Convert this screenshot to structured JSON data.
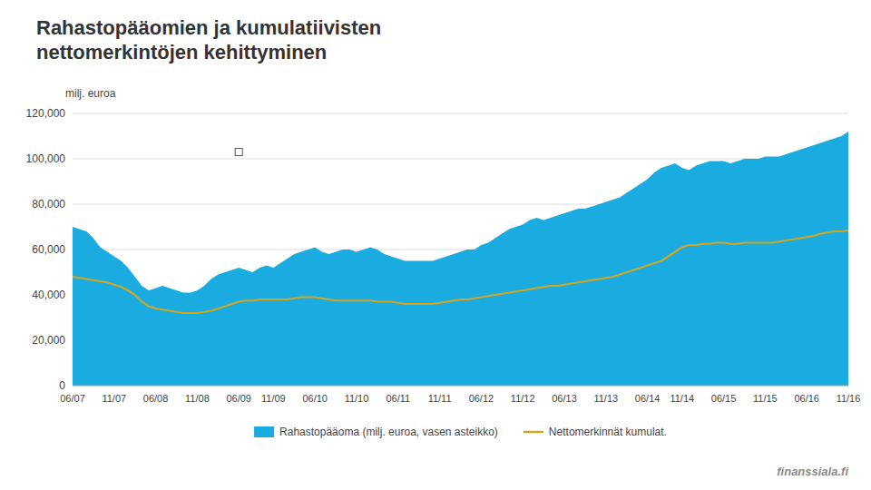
{
  "chart_data": {
    "type": "area",
    "title": "Rahastopääomien ja kumulatiivisten\nnettomerkintöjen kehittyminen",
    "y_label": "milj. euroa",
    "annotations": [
      "finanssiala.fi"
    ],
    "grid": true,
    "legend": "bottom",
    "ylim": [
      0,
      120000
    ],
    "yticks": [
      0,
      {
        "value": 20000,
        "label": "20,000"
      },
      {
        "value": 40000,
        "label": "40,000"
      },
      {
        "value": 60000,
        "label": "60,000"
      },
      {
        "value": 80000,
        "label": "80,000"
      },
      {
        "value": 100000,
        "label": "100,000"
      },
      {
        "value": 120000,
        "label": "120,000"
      }
    ],
    "categories": [
      "06/07",
      null,
      null,
      null,
      null,
      null,
      "11/07",
      null,
      null,
      null,
      null,
      null,
      "06/08",
      null,
      null,
      null,
      null,
      null,
      "11/08",
      null,
      null,
      null,
      null,
      null,
      "06/09",
      null,
      null,
      null,
      null,
      "11/09",
      null,
      null,
      null,
      null,
      null,
      "06/10",
      null,
      null,
      null,
      null,
      null,
      "11/10",
      null,
      null,
      null,
      null,
      null,
      "06/11",
      null,
      null,
      null,
      null,
      null,
      "11/11",
      null,
      null,
      null,
      null,
      null,
      "06/12",
      null,
      null,
      null,
      null,
      null,
      "11/12",
      null,
      null,
      null,
      null,
      null,
      "06/13",
      null,
      null,
      null,
      null,
      null,
      "11/13",
      null,
      null,
      null,
      null,
      null,
      "06/14",
      null,
      null,
      null,
      null,
      "11/14",
      null,
      null,
      null,
      null,
      null,
      "06/15",
      null,
      null,
      null,
      null,
      null,
      "11/15",
      null,
      null,
      null,
      null,
      null,
      "06/16",
      null,
      null,
      null,
      null,
      null,
      "11/16"
    ],
    "series": [
      {
        "name": "Rahastopääoma (milj. euroa, vasen asteikko)",
        "type": "area",
        "color": "#1AACE0",
        "values": [
          70000,
          69000,
          68000,
          65000,
          61000,
          59000,
          57000,
          55000,
          52000,
          48000,
          44000,
          42000,
          43000,
          44000,
          43000,
          42000,
          41000,
          41000,
          42000,
          44000,
          47000,
          49000,
          50000,
          51000,
          52000,
          51000,
          50000,
          52000,
          53000,
          52000,
          54000,
          56000,
          58000,
          59000,
          60000,
          61000,
          59000,
          58000,
          59000,
          60000,
          60000,
          59000,
          60000,
          61000,
          60000,
          58000,
          57000,
          56000,
          55000,
          55000,
          55000,
          55000,
          55000,
          56000,
          57000,
          58000,
          59000,
          60000,
          60000,
          62000,
          63000,
          65000,
          67000,
          69000,
          70000,
          71000,
          73000,
          74000,
          73000,
          74000,
          75000,
          76000,
          77000,
          78000,
          78000,
          79000,
          80000,
          81000,
          82000,
          83000,
          85000,
          87000,
          89000,
          91000,
          94000,
          96000,
          97000,
          98000,
          96000,
          95000,
          97000,
          98000,
          99000,
          99000,
          99000,
          98000,
          99000,
          100000,
          100000,
          100000,
          101000,
          101000,
          101000,
          102000,
          103000,
          104000,
          105000,
          106000,
          107000,
          108000,
          109000,
          110000,
          112000
        ]
      },
      {
        "name": "Nettomerkinnät kumulat.",
        "type": "line",
        "color": "#D4A520",
        "values": [
          48000,
          47500,
          47000,
          46500,
          46000,
          45500,
          44500,
          43500,
          42000,
          40000,
          37000,
          35000,
          34000,
          33500,
          33000,
          32500,
          32000,
          32000,
          32000,
          32500,
          33000,
          34000,
          35000,
          36000,
          37000,
          37500,
          37500,
          38000,
          38000,
          38000,
          38000,
          38000,
          38500,
          39000,
          39000,
          39000,
          38500,
          38000,
          37500,
          37500,
          37500,
          37500,
          37500,
          37500,
          37000,
          37000,
          37000,
          36500,
          36000,
          36000,
          36000,
          36000,
          36000,
          36500,
          37000,
          37500,
          38000,
          38000,
          38500,
          39000,
          39500,
          40000,
          40500,
          41000,
          41500,
          42000,
          42500,
          43000,
          43500,
          44000,
          44000,
          44500,
          45000,
          45500,
          46000,
          46500,
          47000,
          47500,
          48000,
          49000,
          50000,
          51000,
          52000,
          53000,
          54000,
          55000,
          57000,
          59000,
          61000,
          62000,
          62000,
          62500,
          62500,
          63000,
          63000,
          62500,
          62500,
          63000,
          63000,
          63000,
          63000,
          63000,
          63500,
          64000,
          64500,
          65000,
          65500,
          66000,
          67000,
          67500,
          68000,
          68000,
          68500
        ]
      },
      {
        "type": "scatter",
        "marker": "square",
        "color": "#FFFFFF",
        "values": [
          null,
          null,
          null,
          null,
          null,
          null,
          null,
          null,
          null,
          null,
          null,
          null,
          null,
          null,
          null,
          null,
          null,
          null,
          null,
          null,
          null,
          null,
          null,
          null,
          103000,
          null,
          null,
          null,
          null,
          null,
          null,
          null,
          null,
          null,
          null,
          null,
          null,
          null,
          null,
          null,
          null,
          null,
          null,
          null,
          null,
          null,
          null,
          null,
          null,
          null,
          null,
          null,
          null,
          null,
          null,
          null,
          null,
          null,
          null,
          null,
          null,
          null,
          null,
          null,
          null,
          null,
          null,
          null,
          null,
          null,
          null,
          null,
          null,
          null,
          null,
          null,
          null,
          null,
          null,
          null,
          null,
          null,
          null,
          null,
          null,
          null,
          null,
          null,
          null,
          null,
          null,
          null,
          null,
          null,
          null,
          null,
          null,
          null,
          null,
          null,
          null,
          null,
          null,
          null,
          null,
          null,
          null,
          null,
          null,
          null,
          null,
          null,
          null
        ]
      }
    ]
  }
}
